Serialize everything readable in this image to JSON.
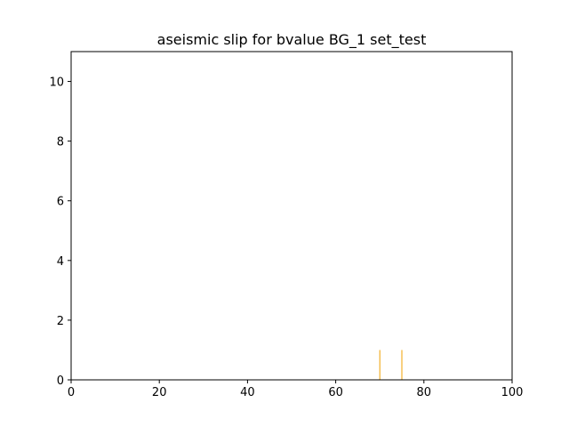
{
  "chart_data": {
    "type": "bar",
    "title": "aseismic slip for bvalue BG_1 set_test",
    "xlabel": "",
    "ylabel": "",
    "xlim": [
      0,
      100
    ],
    "ylim": [
      0,
      11
    ],
    "xticks": [
      0,
      20,
      40,
      60,
      80,
      100
    ],
    "yticks": [
      0,
      2,
      4,
      6,
      8,
      10
    ],
    "x": [
      70,
      75
    ],
    "values": [
      1,
      1
    ],
    "bar_width": 0.1,
    "bar_color": "#f0a000",
    "grid": false
  }
}
